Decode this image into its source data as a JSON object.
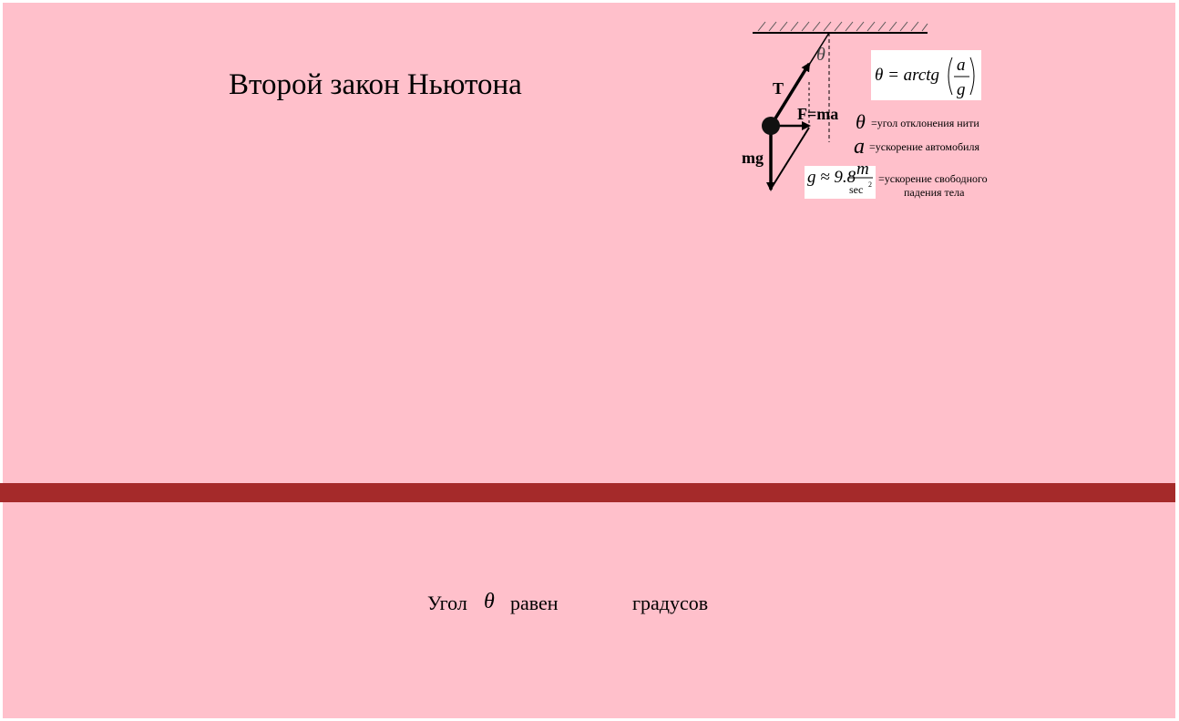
{
  "title": "Второй закон Ньютона",
  "diagram": {
    "tension_label": "T",
    "force_label": "F=ma",
    "gravity_label": "mg",
    "angle_symbol": "θ",
    "formula": {
      "lhs": "θ = arctg",
      "numerator": "a",
      "denominator": "g"
    },
    "legend": [
      {
        "symbol": "θ",
        "text": "=угол отклонения нити"
      },
      {
        "symbol": "a",
        "text": "=ускорение автомобиля"
      }
    ],
    "g_formula": {
      "prefix": "g ≈ 9.8",
      "numerator": "m",
      "denominator": "sec",
      "exponent": "2",
      "text_line1": "=ускорение свободного",
      "text_line2": "падения тела"
    }
  },
  "result": {
    "prefix": "Угол",
    "symbol": "θ",
    "equals": "равен",
    "value": "",
    "units": "градусов"
  },
  "colors": {
    "background": "#ffc0cb",
    "road": "#a52a2a"
  }
}
